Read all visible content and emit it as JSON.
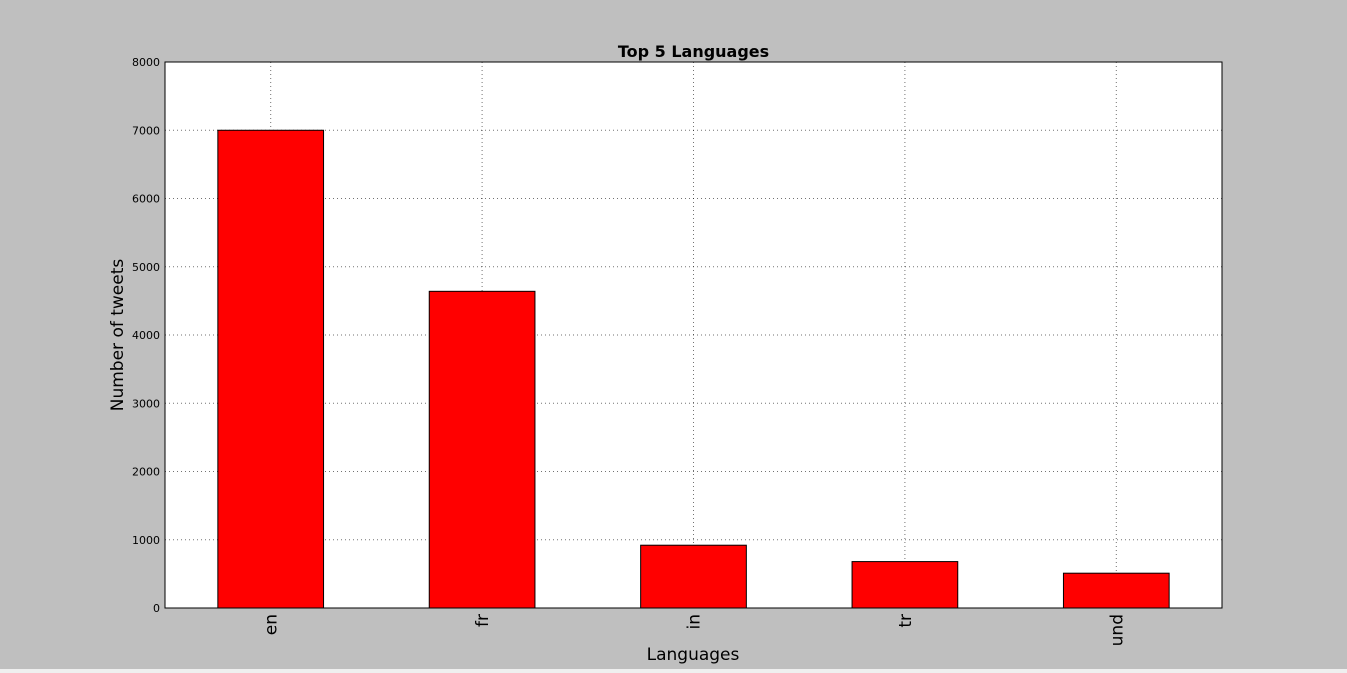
{
  "chart_data": {
    "type": "bar",
    "title": "Top 5 Languages",
    "xlabel": "Languages",
    "ylabel": "Number of tweets",
    "categories": [
      "en",
      "fr",
      "in",
      "tr",
      "und"
    ],
    "values": [
      7000,
      4640,
      920,
      680,
      510
    ],
    "ylim": [
      0,
      8000
    ],
    "yticks": [
      "0",
      "1000",
      "2000",
      "3000",
      "4000",
      "5000",
      "6000",
      "7000",
      "8000"
    ],
    "grid": true,
    "legend": "none",
    "bar_color": "#ff0000",
    "background_color": "#bfbfbf",
    "plot_background_color": "#ffffff"
  }
}
